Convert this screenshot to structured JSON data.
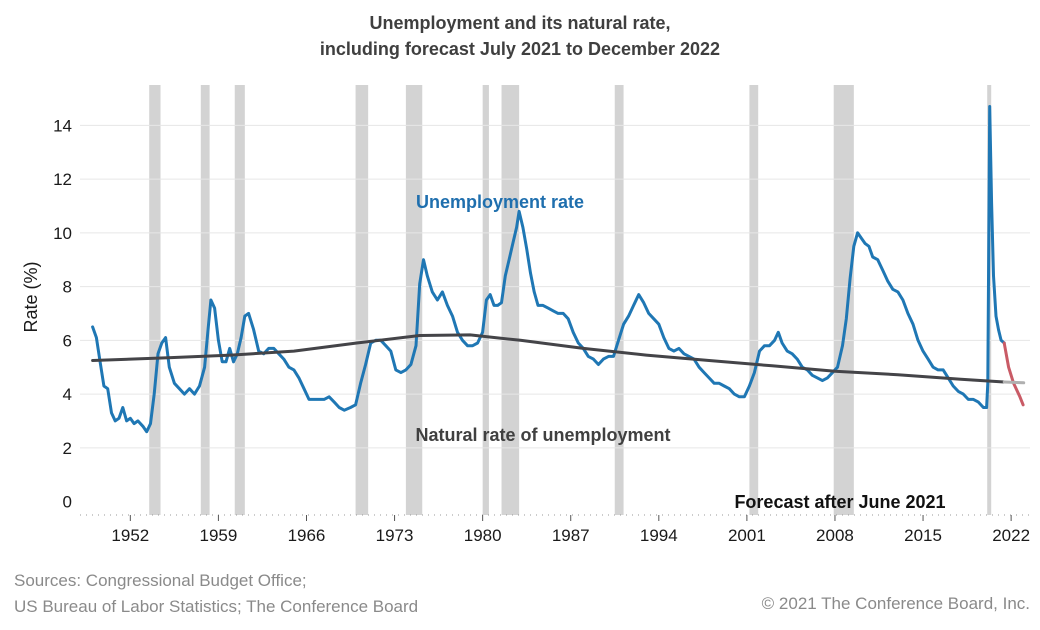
{
  "chart_data": {
    "type": "line",
    "title_line1": "Unemployment and its natural rate,",
    "title_line2": "including forecast July 2021 to December 2022",
    "ylabel": "Rate (%)",
    "xlabel": "",
    "xlim": [
      1948,
      2023.5
    ],
    "ylim": [
      -0.5,
      15.5
    ],
    "y_ticks": [
      0,
      2,
      4,
      6,
      8,
      10,
      12,
      14
    ],
    "x_ticks": [
      1952,
      1959,
      1966,
      1973,
      1980,
      1987,
      1994,
      2001,
      2008,
      2015,
      2022
    ],
    "grid": "horizontal",
    "recessions": [
      [
        1953.5,
        1954.4
      ],
      [
        1957.6,
        1958.3
      ],
      [
        1960.3,
        1961.1
      ],
      [
        1969.9,
        1970.9
      ],
      [
        1973.9,
        1975.2
      ],
      [
        1980.0,
        1980.5
      ],
      [
        1981.5,
        1982.9
      ],
      [
        1990.5,
        1991.2
      ],
      [
        2001.2,
        2001.9
      ],
      [
        2007.9,
        2009.5
      ],
      [
        2020.1,
        2020.4
      ]
    ],
    "annotations": {
      "unemployment": "Unemployment rate",
      "natural": "Natural rate of unemployment",
      "forecast": "Forecast after June 2021"
    },
    "series": [
      {
        "name": "Unemployment rate",
        "color": "#1f77b4",
        "points": [
          [
            1949.0,
            6.5
          ],
          [
            1949.3,
            6.1
          ],
          [
            1949.6,
            5.2
          ],
          [
            1949.9,
            4.3
          ],
          [
            1950.2,
            4.2
          ],
          [
            1950.5,
            3.3
          ],
          [
            1950.8,
            3.0
          ],
          [
            1951.1,
            3.1
          ],
          [
            1951.4,
            3.5
          ],
          [
            1951.7,
            3.0
          ],
          [
            1952.0,
            3.1
          ],
          [
            1952.3,
            2.9
          ],
          [
            1952.6,
            3.0
          ],
          [
            1953.0,
            2.8
          ],
          [
            1953.3,
            2.6
          ],
          [
            1953.6,
            2.9
          ],
          [
            1953.9,
            4.0
          ],
          [
            1954.2,
            5.5
          ],
          [
            1954.5,
            5.9
          ],
          [
            1954.8,
            6.1
          ],
          [
            1955.1,
            5.0
          ],
          [
            1955.5,
            4.4
          ],
          [
            1955.9,
            4.2
          ],
          [
            1956.3,
            4.0
          ],
          [
            1956.7,
            4.2
          ],
          [
            1957.1,
            4.0
          ],
          [
            1957.5,
            4.3
          ],
          [
            1957.9,
            5.0
          ],
          [
            1958.2,
            6.5
          ],
          [
            1958.4,
            7.5
          ],
          [
            1958.7,
            7.2
          ],
          [
            1959.0,
            6.0
          ],
          [
            1959.3,
            5.2
          ],
          [
            1959.6,
            5.2
          ],
          [
            1959.9,
            5.7
          ],
          [
            1960.2,
            5.2
          ],
          [
            1960.5,
            5.5
          ],
          [
            1960.8,
            6.1
          ],
          [
            1961.1,
            6.9
          ],
          [
            1961.4,
            7.0
          ],
          [
            1961.8,
            6.4
          ],
          [
            1962.2,
            5.6
          ],
          [
            1962.6,
            5.5
          ],
          [
            1963.0,
            5.7
          ],
          [
            1963.4,
            5.7
          ],
          [
            1963.8,
            5.5
          ],
          [
            1964.2,
            5.3
          ],
          [
            1964.6,
            5.0
          ],
          [
            1965.0,
            4.9
          ],
          [
            1965.4,
            4.6
          ],
          [
            1965.8,
            4.2
          ],
          [
            1966.2,
            3.8
          ],
          [
            1966.6,
            3.8
          ],
          [
            1967.0,
            3.8
          ],
          [
            1967.4,
            3.8
          ],
          [
            1967.8,
            3.9
          ],
          [
            1968.2,
            3.7
          ],
          [
            1968.6,
            3.5
          ],
          [
            1969.0,
            3.4
          ],
          [
            1969.5,
            3.5
          ],
          [
            1969.9,
            3.6
          ],
          [
            1970.3,
            4.4
          ],
          [
            1970.7,
            5.1
          ],
          [
            1971.1,
            5.9
          ],
          [
            1971.5,
            6.0
          ],
          [
            1971.9,
            6.0
          ],
          [
            1972.3,
            5.8
          ],
          [
            1972.7,
            5.6
          ],
          [
            1973.1,
            4.9
          ],
          [
            1973.5,
            4.8
          ],
          [
            1973.9,
            4.9
          ],
          [
            1974.3,
            5.1
          ],
          [
            1974.7,
            5.8
          ],
          [
            1975.0,
            8.1
          ],
          [
            1975.3,
            9.0
          ],
          [
            1975.6,
            8.4
          ],
          [
            1976.0,
            7.8
          ],
          [
            1976.4,
            7.5
          ],
          [
            1976.8,
            7.8
          ],
          [
            1977.2,
            7.3
          ],
          [
            1977.6,
            6.9
          ],
          [
            1978.0,
            6.3
          ],
          [
            1978.4,
            6.0
          ],
          [
            1978.8,
            5.8
          ],
          [
            1979.2,
            5.8
          ],
          [
            1979.6,
            5.9
          ],
          [
            1980.0,
            6.3
          ],
          [
            1980.3,
            7.5
          ],
          [
            1980.6,
            7.7
          ],
          [
            1980.9,
            7.3
          ],
          [
            1981.2,
            7.3
          ],
          [
            1981.5,
            7.4
          ],
          [
            1981.8,
            8.4
          ],
          [
            1982.1,
            9.0
          ],
          [
            1982.4,
            9.6
          ],
          [
            1982.7,
            10.2
          ],
          [
            1982.9,
            10.8
          ],
          [
            1983.2,
            10.2
          ],
          [
            1983.5,
            9.4
          ],
          [
            1983.8,
            8.5
          ],
          [
            1984.1,
            7.8
          ],
          [
            1984.4,
            7.3
          ],
          [
            1984.8,
            7.3
          ],
          [
            1985.2,
            7.2
          ],
          [
            1985.6,
            7.1
          ],
          [
            1986.0,
            7.0
          ],
          [
            1986.4,
            7.0
          ],
          [
            1986.8,
            6.8
          ],
          [
            1987.2,
            6.3
          ],
          [
            1987.6,
            5.9
          ],
          [
            1988.0,
            5.7
          ],
          [
            1988.4,
            5.4
          ],
          [
            1988.8,
            5.3
          ],
          [
            1989.2,
            5.1
          ],
          [
            1989.6,
            5.3
          ],
          [
            1990.0,
            5.4
          ],
          [
            1990.4,
            5.4
          ],
          [
            1990.8,
            6.0
          ],
          [
            1991.2,
            6.6
          ],
          [
            1991.6,
            6.9
          ],
          [
            1992.0,
            7.3
          ],
          [
            1992.4,
            7.7
          ],
          [
            1992.8,
            7.4
          ],
          [
            1993.2,
            7.0
          ],
          [
            1993.6,
            6.8
          ],
          [
            1994.0,
            6.6
          ],
          [
            1994.4,
            6.1
          ],
          [
            1994.8,
            5.7
          ],
          [
            1995.2,
            5.6
          ],
          [
            1995.6,
            5.7
          ],
          [
            1996.0,
            5.5
          ],
          [
            1996.4,
            5.4
          ],
          [
            1996.8,
            5.3
          ],
          [
            1997.2,
            5.0
          ],
          [
            1997.6,
            4.8
          ],
          [
            1998.0,
            4.6
          ],
          [
            1998.4,
            4.4
          ],
          [
            1998.8,
            4.4
          ],
          [
            1999.2,
            4.3
          ],
          [
            1999.6,
            4.2
          ],
          [
            2000.0,
            4.0
          ],
          [
            2000.4,
            3.9
          ],
          [
            2000.8,
            3.9
          ],
          [
            2001.2,
            4.3
          ],
          [
            2001.6,
            4.8
          ],
          [
            2002.0,
            5.6
          ],
          [
            2002.4,
            5.8
          ],
          [
            2002.8,
            5.8
          ],
          [
            2003.2,
            6.0
          ],
          [
            2003.5,
            6.3
          ],
          [
            2003.8,
            5.9
          ],
          [
            2004.2,
            5.6
          ],
          [
            2004.6,
            5.5
          ],
          [
            2005.0,
            5.3
          ],
          [
            2005.4,
            5.0
          ],
          [
            2005.8,
            4.9
          ],
          [
            2006.2,
            4.7
          ],
          [
            2006.6,
            4.6
          ],
          [
            2007.0,
            4.5
          ],
          [
            2007.4,
            4.6
          ],
          [
            2007.8,
            4.8
          ],
          [
            2008.2,
            5.0
          ],
          [
            2008.6,
            5.8
          ],
          [
            2008.9,
            6.8
          ],
          [
            2009.2,
            8.3
          ],
          [
            2009.5,
            9.5
          ],
          [
            2009.8,
            10.0
          ],
          [
            2010.1,
            9.8
          ],
          [
            2010.4,
            9.6
          ],
          [
            2010.7,
            9.5
          ],
          [
            2011.0,
            9.1
          ],
          [
            2011.4,
            9.0
          ],
          [
            2011.8,
            8.6
          ],
          [
            2012.2,
            8.2
          ],
          [
            2012.6,
            7.9
          ],
          [
            2013.0,
            7.8
          ],
          [
            2013.4,
            7.5
          ],
          [
            2013.8,
            7.0
          ],
          [
            2014.2,
            6.6
          ],
          [
            2014.6,
            6.0
          ],
          [
            2015.0,
            5.6
          ],
          [
            2015.4,
            5.3
          ],
          [
            2015.8,
            5.0
          ],
          [
            2016.2,
            4.9
          ],
          [
            2016.6,
            4.9
          ],
          [
            2017.0,
            4.6
          ],
          [
            2017.4,
            4.3
          ],
          [
            2017.8,
            4.1
          ],
          [
            2018.2,
            4.0
          ],
          [
            2018.6,
            3.8
          ],
          [
            2019.0,
            3.8
          ],
          [
            2019.4,
            3.7
          ],
          [
            2019.8,
            3.5
          ],
          [
            2020.05,
            3.5
          ],
          [
            2020.15,
            4.4
          ],
          [
            2020.3,
            14.7
          ],
          [
            2020.45,
            11.1
          ],
          [
            2020.6,
            8.4
          ],
          [
            2020.8,
            6.9
          ],
          [
            2021.0,
            6.4
          ],
          [
            2021.2,
            6.0
          ],
          [
            2021.45,
            5.9
          ]
        ]
      },
      {
        "name": "Forecast",
        "color": "#c95b66",
        "points": [
          [
            2021.45,
            5.9
          ],
          [
            2021.8,
            5.0
          ],
          [
            2022.2,
            4.4
          ],
          [
            2022.7,
            3.9
          ],
          [
            2022.95,
            3.6
          ]
        ]
      },
      {
        "name": "Natural rate of unemployment",
        "color": "#444448",
        "points": [
          [
            1949.0,
            5.25
          ],
          [
            1955.0,
            5.35
          ],
          [
            1960.0,
            5.45
          ],
          [
            1965.0,
            5.6
          ],
          [
            1970.0,
            5.9
          ],
          [
            1975.0,
            6.18
          ],
          [
            1979.0,
            6.2
          ],
          [
            1983.0,
            6.0
          ],
          [
            1988.0,
            5.7
          ],
          [
            1993.0,
            5.45
          ],
          [
            1998.0,
            5.25
          ],
          [
            2003.0,
            5.05
          ],
          [
            2008.0,
            4.85
          ],
          [
            2013.0,
            4.72
          ],
          [
            2018.0,
            4.55
          ],
          [
            2021.45,
            4.45
          ]
        ]
      },
      {
        "name": "Natural rate forecast",
        "color": "#b0b0b0",
        "points": [
          [
            2021.45,
            4.45
          ],
          [
            2023.0,
            4.42
          ]
        ]
      }
    ]
  },
  "footer": {
    "sources_line1": "Sources: Congressional Budget Office;",
    "sources_line2": "US Bureau of Labor Statistics; The Conference Board",
    "copyright": "© 2021 The Conference Board, Inc."
  }
}
